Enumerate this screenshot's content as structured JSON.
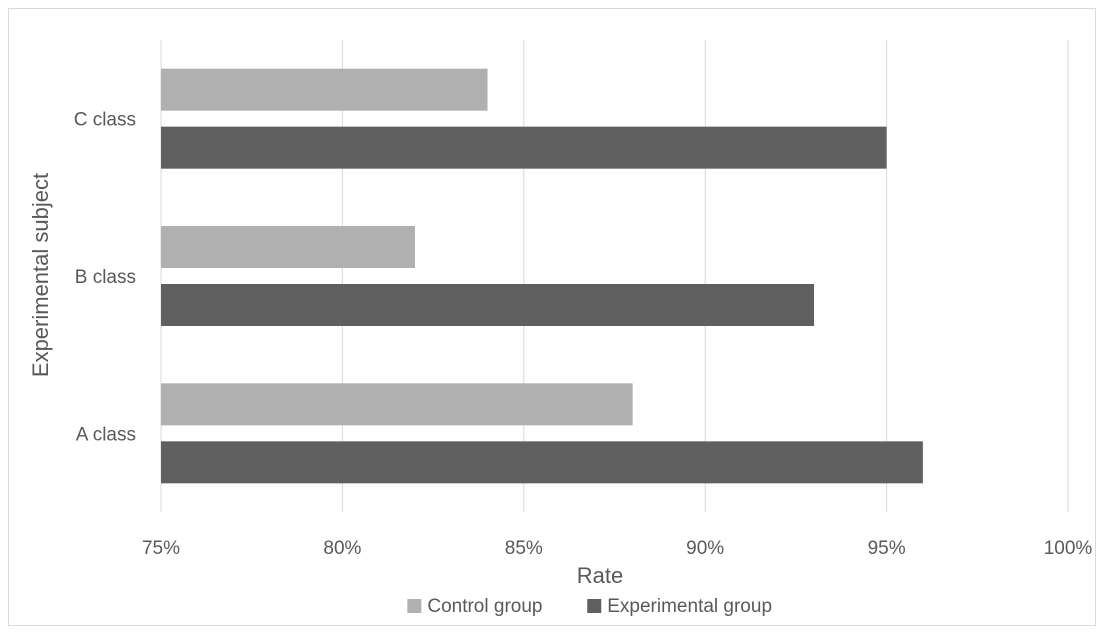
{
  "chart_data": {
    "type": "bar",
    "orientation": "horizontal",
    "categories": [
      "A class",
      "B class",
      "C class"
    ],
    "series": [
      {
        "name": "Control group",
        "values": [
          0.88,
          0.82,
          0.84
        ],
        "color": "#b0b0b0"
      },
      {
        "name": "Experimental group",
        "values": [
          0.96,
          0.93,
          0.95
        ],
        "color": "#5f5f5f"
      }
    ],
    "xlabel": "Rate",
    "ylabel": "Experimental subject",
    "xlim": [
      0.75,
      1.0
    ],
    "xticks": [
      0.75,
      0.8,
      0.85,
      0.9,
      0.95,
      1.0
    ],
    "xtick_labels": [
      "75%",
      "80%",
      "85%",
      "90%",
      "95%",
      "100%"
    ],
    "grid": "vertical",
    "legend_position": "bottom"
  }
}
